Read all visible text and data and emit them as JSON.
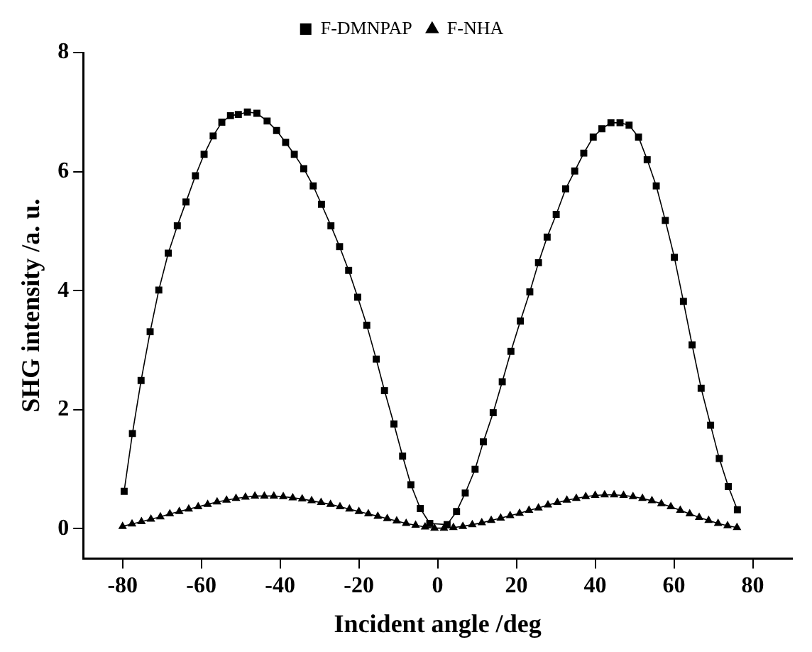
{
  "chart_data": {
    "type": "line",
    "xlabel": "Incident angle /deg",
    "ylabel": "SHG intensity /a. u.",
    "xlim": [
      -90,
      90
    ],
    "xticks": [
      -80,
      -60,
      -40,
      -20,
      0,
      20,
      40,
      60,
      80
    ],
    "ylim": [
      -0.5,
      8
    ],
    "yticks": [
      0,
      2,
      4,
      6,
      8
    ],
    "grid": false,
    "legend": "top",
    "line_style": "solid",
    "series": [
      {
        "name": "F-DMNPAP",
        "color": "#000000",
        "marker": "square",
        "x": [
          -79.6,
          -77.5,
          -75.3,
          -73.0,
          -70.8,
          -68.4,
          -66.1,
          -63.9,
          -61.5,
          -59.3,
          -57.0,
          -54.8,
          -52.6,
          -50.6,
          -48.3,
          -45.9,
          -43.3,
          -40.9,
          -38.6,
          -36.4,
          -34.0,
          -31.6,
          -29.5,
          -27.1,
          -24.9,
          -22.6,
          -20.3,
          -18.0,
          -15.6,
          -13.5,
          -11.1,
          -8.9,
          -6.8,
          -4.4,
          -2.0,
          2.4,
          4.8,
          7.0,
          9.5,
          11.6,
          14.1,
          16.4,
          18.6,
          21.0,
          23.4,
          25.6,
          27.8,
          30.1,
          32.5,
          34.8,
          37.1,
          39.5,
          41.7,
          44.0,
          46.3,
          48.6,
          51.0,
          53.2,
          55.5,
          57.8,
          60.1,
          62.4,
          64.6,
          66.9,
          69.3,
          71.5,
          73.8,
          76.1
        ],
        "values": [
          0.63,
          1.6,
          2.49,
          3.31,
          4.01,
          4.63,
          5.09,
          5.49,
          5.93,
          6.29,
          6.6,
          6.83,
          6.94,
          6.96,
          7.0,
          6.98,
          6.85,
          6.69,
          6.49,
          6.29,
          6.05,
          5.76,
          5.45,
          5.09,
          4.74,
          4.34,
          3.89,
          3.42,
          2.85,
          2.32,
          1.76,
          1.22,
          0.74,
          0.34,
          0.09,
          0.07,
          0.29,
          0.6,
          1.0,
          1.46,
          1.95,
          2.47,
          2.98,
          3.49,
          3.98,
          4.47,
          4.9,
          5.28,
          5.71,
          6.01,
          6.31,
          6.58,
          6.72,
          6.82,
          6.82,
          6.78,
          6.58,
          6.2,
          5.76,
          5.18,
          4.56,
          3.82,
          3.09,
          2.36,
          1.74,
          1.18,
          0.71,
          0.32
        ]
      },
      {
        "name": "F-NHA",
        "color": "#000000",
        "marker": "triangle",
        "x": [
          -80,
          -77.6,
          -75.2,
          -72.8,
          -70.4,
          -68,
          -65.6,
          -63.2,
          -60.8,
          -58.4,
          -56,
          -53.6,
          -51.2,
          -48.8,
          -46.4,
          -44,
          -41.6,
          -39.2,
          -36.8,
          -34.4,
          -32,
          -29.6,
          -27.2,
          -24.8,
          -22.4,
          -20,
          -17.6,
          -15.2,
          -12.8,
          -10.4,
          -8,
          -5.6,
          -3.2,
          -0.8,
          1.6,
          4,
          6.4,
          8.8,
          11.2,
          13.6,
          16,
          18.4,
          20.8,
          23.2,
          25.6,
          28,
          30.4,
          32.8,
          35.2,
          37.6,
          40,
          42.4,
          44.8,
          47.2,
          49.6,
          52,
          54.4,
          56.8,
          59.2,
          61.6,
          64,
          66.4,
          68.8,
          71.2,
          73.6,
          76
        ],
        "values": [
          0.04,
          0.08,
          0.12,
          0.16,
          0.2,
          0.25,
          0.29,
          0.33,
          0.37,
          0.41,
          0.45,
          0.48,
          0.51,
          0.53,
          0.55,
          0.55,
          0.55,
          0.54,
          0.52,
          0.5,
          0.47,
          0.44,
          0.41,
          0.37,
          0.33,
          0.29,
          0.25,
          0.21,
          0.17,
          0.13,
          0.09,
          0.06,
          0.03,
          0.01,
          0.01,
          0.02,
          0.04,
          0.07,
          0.1,
          0.14,
          0.18,
          0.22,
          0.26,
          0.31,
          0.35,
          0.4,
          0.44,
          0.48,
          0.51,
          0.54,
          0.56,
          0.57,
          0.57,
          0.56,
          0.54,
          0.51,
          0.47,
          0.42,
          0.37,
          0.31,
          0.25,
          0.19,
          0.14,
          0.09,
          0.05,
          0.02
        ]
      }
    ]
  }
}
